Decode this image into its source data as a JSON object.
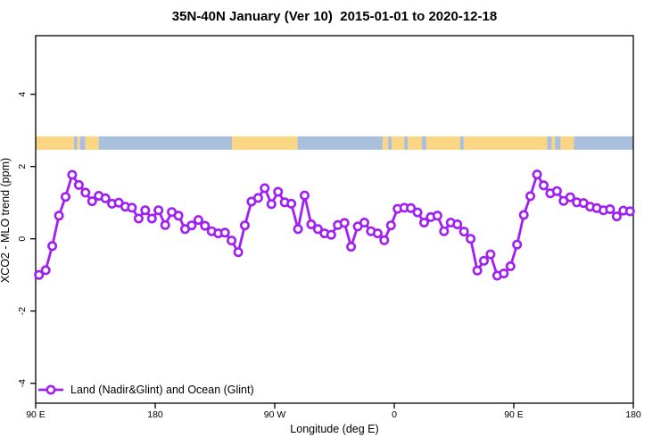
{
  "title": "35N-40N January (Ver 10)  2015-01-01 to 2020-12-18",
  "chart_data": {
    "type": "line",
    "title": "35N-40N January (Ver 10)  2015-01-01 to 2020-12-18",
    "xlabel": "Longitude (deg E)",
    "ylabel": "XCO2 - MLO trend (ppm)",
    "legend": {
      "label": "Land (Nadir&Glint) and Ocean (Glint)",
      "position": "bottom-left"
    },
    "line_color": "#a020f0",
    "marker_style": "open-circle",
    "grid": false,
    "x_axis": {
      "wraps_globe": true,
      "range_deg": [
        90,
        540
      ],
      "ticks": [
        {
          "axis_deg": 90,
          "label": "90 E"
        },
        {
          "axis_deg": 180,
          "label": "180"
        },
        {
          "axis_deg": 270,
          "label": "90 W"
        },
        {
          "axis_deg": 360,
          "label": "0"
        },
        {
          "axis_deg": 450,
          "label": "90 E"
        },
        {
          "axis_deg": 540,
          "label": "180"
        }
      ]
    },
    "y_axis": {
      "ticks": [
        {
          "value": -4,
          "label": "-4"
        },
        {
          "value": -2,
          "label": "-2"
        },
        {
          "value": 0,
          "label": "0"
        },
        {
          "value": 2,
          "label": "2"
        },
        {
          "value": 4,
          "label": "4"
        }
      ]
    },
    "points_start_deg": 92.5,
    "points_step_deg": 5,
    "values": [
      -1.0,
      -0.87,
      -0.2,
      0.64,
      1.16,
      1.77,
      1.49,
      1.28,
      1.04,
      1.19,
      1.12,
      0.97,
      1.0,
      0.89,
      0.86,
      0.56,
      0.79,
      0.56,
      0.79,
      0.38,
      0.74,
      0.64,
      0.27,
      0.37,
      0.52,
      0.36,
      0.21,
      0.15,
      0.17,
      -0.05,
      -0.37,
      0.37,
      1.03,
      1.13,
      1.4,
      0.96,
      1.3,
      1.01,
      0.97,
      0.27,
      1.2,
      0.4,
      0.27,
      0.15,
      0.11,
      0.38,
      0.44,
      -0.22,
      0.34,
      0.45,
      0.21,
      0.15,
      -0.04,
      0.37,
      0.83,
      0.86,
      0.85,
      0.73,
      0.45,
      0.6,
      0.64,
      0.21,
      0.45,
      0.4,
      0.2,
      0.0,
      -0.88,
      -0.61,
      -0.43,
      -1.02,
      -0.96,
      -0.76,
      -0.16,
      0.66,
      1.18,
      1.78,
      1.48,
      1.26,
      1.32,
      1.05,
      1.15,
      1.01,
      0.99,
      0.89,
      0.85,
      0.79,
      0.82,
      0.62,
      0.78,
      0.76
    ],
    "surface_band": {
      "description": "land/ocean strip",
      "value_center": 2.65,
      "value_half_height": 0.185,
      "land_color": "#fad584",
      "ocean_color": "#a9bfdc",
      "segments": [
        {
          "from": 90,
          "to": 118.8,
          "surface": "land"
        },
        {
          "from": 118.8,
          "to": 121.4,
          "surface": "ocean"
        },
        {
          "from": 121.4,
          "to": 123.4,
          "surface": "land"
        },
        {
          "from": 123.4,
          "to": 127.4,
          "surface": "ocean"
        },
        {
          "from": 127.4,
          "to": 137.5,
          "surface": "land"
        },
        {
          "from": 137.5,
          "to": 237.8,
          "surface": "ocean"
        },
        {
          "from": 237.8,
          "to": 287.2,
          "surface": "land"
        },
        {
          "from": 287.2,
          "to": 351.4,
          "surface": "ocean"
        },
        {
          "from": 351.4,
          "to": 355.4,
          "surface": "land"
        },
        {
          "from": 355.4,
          "to": 358.1,
          "surface": "ocean"
        },
        {
          "from": 358.1,
          "to": 367.5,
          "surface": "land"
        },
        {
          "from": 367.5,
          "to": 370.1,
          "surface": "ocean"
        },
        {
          "from": 370.1,
          "to": 380.8,
          "surface": "land"
        },
        {
          "from": 380.8,
          "to": 384.2,
          "surface": "ocean"
        },
        {
          "from": 384.2,
          "to": 409.6,
          "surface": "land"
        },
        {
          "from": 409.6,
          "to": 412.3,
          "surface": "ocean"
        },
        {
          "from": 412.3,
          "to": 475.1,
          "surface": "land"
        },
        {
          "from": 475.1,
          "to": 478.5,
          "surface": "ocean"
        },
        {
          "from": 478.5,
          "to": 481.1,
          "surface": "land"
        },
        {
          "from": 481.1,
          "to": 485.2,
          "surface": "ocean"
        },
        {
          "from": 485.2,
          "to": 495.2,
          "surface": "land"
        },
        {
          "from": 495.2,
          "to": 540,
          "surface": "ocean"
        }
      ]
    }
  }
}
